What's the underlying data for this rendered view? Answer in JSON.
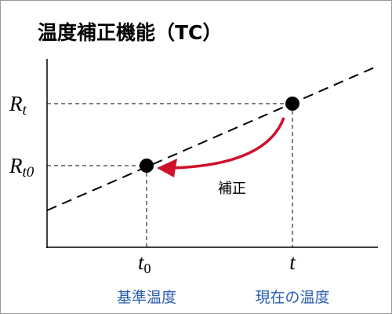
{
  "header": {
    "title": "温度補正機能（TC）"
  },
  "y_labels": [
    {
      "base": "R",
      "sub": "t"
    },
    {
      "base": "R",
      "sub": "t0"
    }
  ],
  "x_labels": [
    {
      "base": "t",
      "sub": "0"
    },
    {
      "base": "t"
    }
  ],
  "annotation": "補正",
  "captions": [
    "基準温度",
    "現在の温度"
  ]
}
